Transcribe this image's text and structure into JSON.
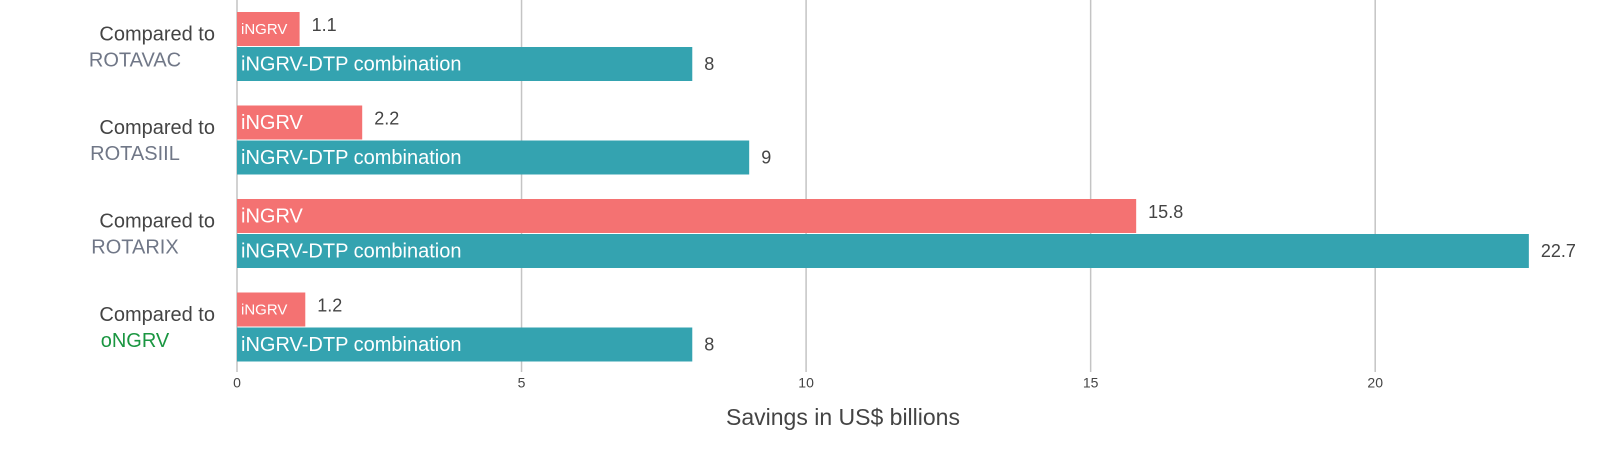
{
  "chart_data": {
    "type": "bar",
    "orientation": "horizontal",
    "xlabel": "Savings in US$ billions",
    "category_prefix": "Compared to",
    "categories": [
      "ROTAVAC",
      "ROTASIIL",
      "ROTARIX",
      "oNGRV"
    ],
    "category_colors": [
      "#707787",
      "#707787",
      "#707787",
      "#1a9641"
    ],
    "series": [
      {
        "name": "iNGRV",
        "color": "#f47272",
        "values": [
          1.1,
          2.2,
          15.8,
          1.2
        ]
      },
      {
        "name": "iNGRV-DTP combination",
        "color": "#34a3b0",
        "values": [
          8,
          9,
          22.7,
          8
        ]
      }
    ],
    "xlim": [
      0,
      23.3
    ],
    "xticks": [
      0,
      5,
      10,
      15,
      20
    ],
    "grid": true
  }
}
